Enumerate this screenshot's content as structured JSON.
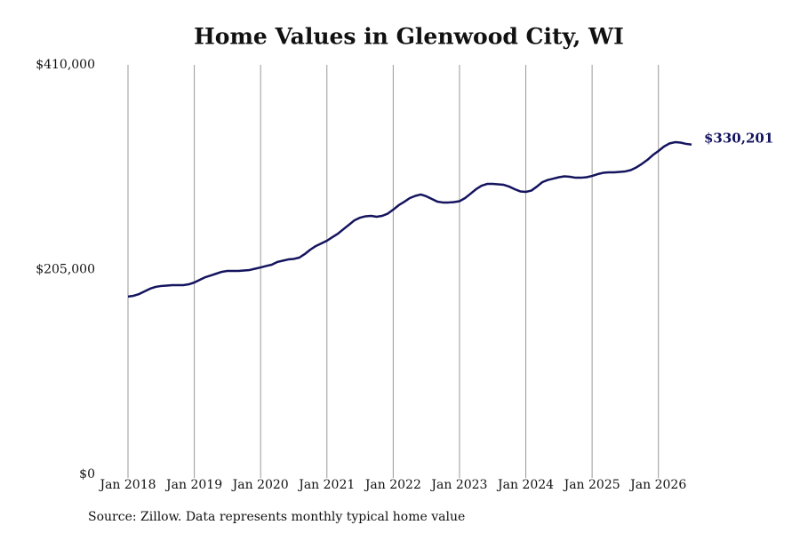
{
  "chart_data": {
    "type": "line",
    "title": "Home Values in Glenwood City, WI",
    "source": "Source: Zillow. Data represents monthly typical home value",
    "color": "#14145f",
    "x": [
      "2018-01",
      "2018-02",
      "2018-03",
      "2018-04",
      "2018-05",
      "2018-06",
      "2018-07",
      "2018-08",
      "2018-09",
      "2018-10",
      "2018-11",
      "2018-12",
      "2019-01",
      "2019-02",
      "2019-03",
      "2019-04",
      "2019-05",
      "2019-06",
      "2019-07",
      "2019-08",
      "2019-09",
      "2019-10",
      "2019-11",
      "2019-12",
      "2020-01",
      "2020-02",
      "2020-03",
      "2020-04",
      "2020-05",
      "2020-06",
      "2020-07",
      "2020-08",
      "2020-09",
      "2020-10",
      "2020-11",
      "2020-12",
      "2021-01",
      "2021-02",
      "2021-03",
      "2021-04",
      "2021-05",
      "2021-06",
      "2021-07",
      "2021-08",
      "2021-09",
      "2021-10",
      "2021-11",
      "2021-12",
      "2022-01",
      "2022-02",
      "2022-03",
      "2022-04",
      "2022-05",
      "2022-06",
      "2022-07",
      "2022-08",
      "2022-09",
      "2022-10",
      "2022-11",
      "2022-12",
      "2023-01",
      "2023-02",
      "2023-03",
      "2023-04",
      "2023-05",
      "2023-06",
      "2023-07",
      "2023-08",
      "2023-09",
      "2023-10",
      "2023-11",
      "2023-12",
      "2024-01",
      "2024-02",
      "2024-03",
      "2024-04",
      "2024-05",
      "2024-06",
      "2024-07",
      "2024-08",
      "2024-09",
      "2024-10",
      "2024-11",
      "2024-12",
      "2025-01",
      "2025-02",
      "2025-03",
      "2025-04",
      "2025-05",
      "2025-06",
      "2025-07",
      "2025-08",
      "2025-09",
      "2025-10",
      "2025-11",
      "2025-12",
      "2026-01",
      "2026-02",
      "2026-03",
      "2026-04",
      "2026-05",
      "2026-06",
      "2026-07"
    ],
    "values": [
      178000,
      178800,
      180500,
      183200,
      185900,
      187700,
      188600,
      189000,
      189400,
      189400,
      189400,
      190300,
      192100,
      194800,
      197400,
      199200,
      201000,
      202800,
      203700,
      203700,
      203700,
      204100,
      204600,
      205900,
      207200,
      208600,
      209900,
      212600,
      213900,
      215200,
      215700,
      217000,
      220600,
      225000,
      228600,
      231200,
      233900,
      237500,
      241000,
      245500,
      249900,
      254400,
      257000,
      258400,
      258800,
      257900,
      258800,
      261000,
      265000,
      269500,
      272900,
      276600,
      278800,
      280200,
      278400,
      275700,
      273000,
      272200,
      272200,
      272600,
      273500,
      276600,
      281000,
      285500,
      289000,
      290800,
      290800,
      290400,
      289900,
      288100,
      285500,
      283300,
      282800,
      284100,
      288100,
      292600,
      294800,
      296100,
      297500,
      298400,
      297900,
      297000,
      297000,
      297500,
      298800,
      300600,
      301900,
      302400,
      302400,
      302800,
      303300,
      304600,
      307300,
      310800,
      314800,
      319700,
      323700,
      328200,
      331300,
      332600,
      332200,
      330900,
      330201
    ],
    "value_labels": [
      null,
      null,
      null,
      null,
      null,
      null,
      null,
      null,
      null,
      null,
      null,
      null,
      null,
      null,
      null,
      null,
      null,
      null,
      null,
      null,
      null,
      null,
      null,
      null,
      null,
      null,
      null,
      null,
      null,
      null,
      null,
      null,
      null,
      null,
      null,
      null,
      null,
      null,
      null,
      null,
      null,
      null,
      null,
      null,
      null,
      null,
      null,
      null,
      null,
      null,
      null,
      null,
      null,
      null,
      null,
      null,
      null,
      null,
      null,
      null,
      null,
      null,
      null,
      null,
      null,
      null,
      null,
      null,
      null,
      null,
      null,
      null,
      null,
      null,
      null,
      null,
      null,
      null,
      null,
      null,
      null,
      null,
      null,
      null,
      null,
      null,
      null,
      null,
      null,
      null,
      null,
      null,
      null,
      null,
      null,
      null,
      null,
      null,
      null,
      null,
      null,
      null,
      "$330,201"
    ],
    "xlim": [
      "2018-01",
      "2026-07"
    ],
    "xticks": [
      {
        "value": "2018-01",
        "label": "Jan 2018"
      },
      {
        "value": "2019-01",
        "label": "Jan 2019"
      },
      {
        "value": "2020-01",
        "label": "Jan 2020"
      },
      {
        "value": "2021-01",
        "label": "Jan 2021"
      },
      {
        "value": "2022-01",
        "label": "Jan 2022"
      },
      {
        "value": "2023-01",
        "label": "Jan 2023"
      },
      {
        "value": "2024-01",
        "label": "Jan 2024"
      },
      {
        "value": "2025-01",
        "label": "Jan 2025"
      },
      {
        "value": "2026-01",
        "label": "Jan 2026"
      }
    ],
    "ylim": [
      0,
      410000
    ],
    "yticks": [
      {
        "value": 0,
        "label": "$0"
      },
      {
        "value": 205000,
        "label": "$205,000"
      },
      {
        "value": 410000,
        "label": "$410,000"
      }
    ],
    "xgrid": true
  }
}
